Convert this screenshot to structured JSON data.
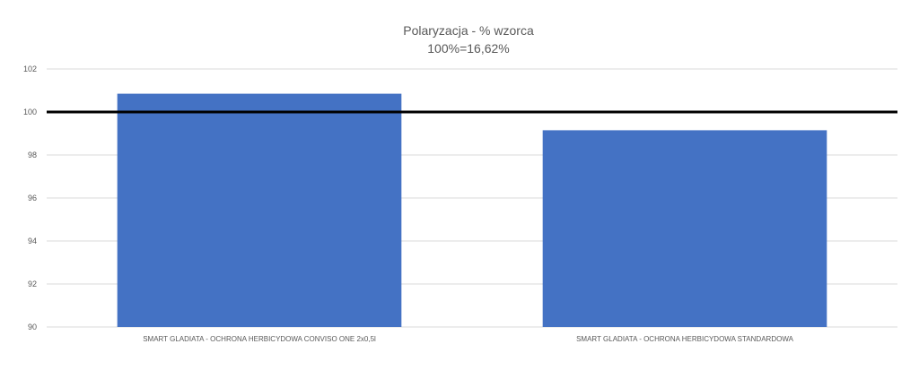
{
  "chart_data": {
    "type": "bar",
    "title": "Polaryzacja - % wzorca",
    "subtitle": "100%=16,62%",
    "categories": [
      "SMART GLADIATA - OCHRONA HERBICYDOWA CONVISO ONE 2x0,5l",
      "SMART GLADIATA - OCHRONA HERBICYDOWA STANDARDOWA"
    ],
    "series": [
      {
        "values": [
          100.85,
          99.15
        ]
      }
    ],
    "ylim": [
      90,
      102
    ],
    "yticks": [
      90,
      92,
      94,
      96,
      98,
      100,
      102
    ],
    "reference_line": 100,
    "grid": true,
    "legend": "none",
    "colors": {
      "bar": "#4472C4",
      "grid": "#D9D9D9",
      "reference_line": "#000000",
      "text": "#595959"
    }
  }
}
